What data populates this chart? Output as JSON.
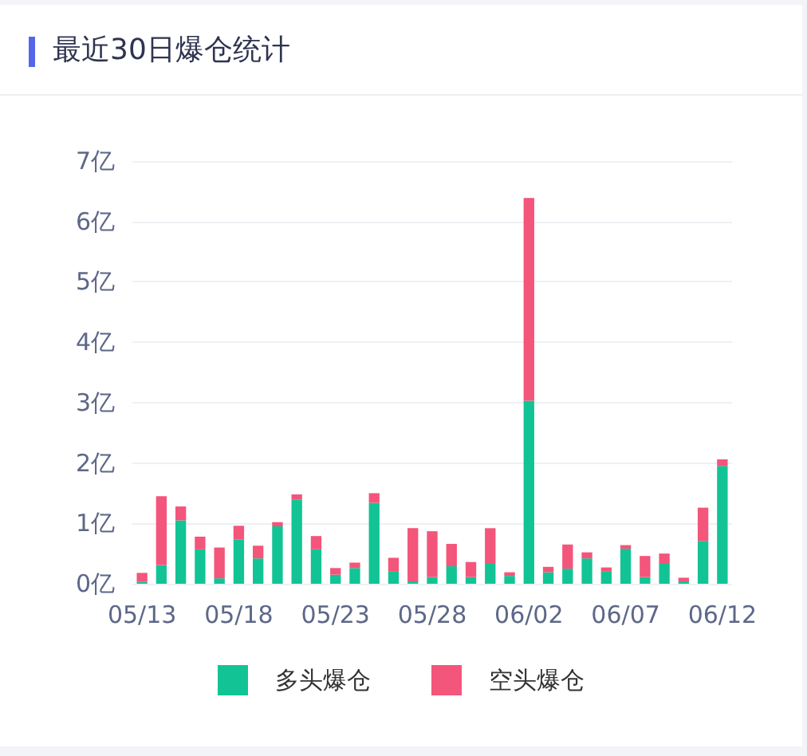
{
  "chart_data": {
    "type": "bar",
    "title": "最近30日爆仓统计",
    "categories": [
      "05/13",
      null,
      null,
      null,
      null,
      "05/18",
      null,
      null,
      null,
      null,
      "05/23",
      null,
      null,
      null,
      null,
      "05/28",
      null,
      null,
      null,
      null,
      "06/02",
      null,
      null,
      null,
      null,
      "06/07",
      null,
      null,
      null,
      null,
      "06/12"
    ],
    "series": [
      {
        "name": "多头爆仓",
        "color": "#12c495",
        "values": [
          0.03,
          0.31,
          1.05,
          0.57,
          0.09,
          0.73,
          0.42,
          0.95,
          1.39,
          0.57,
          0.15,
          0.26,
          1.34,
          0.2,
          0.04,
          0.11,
          0.29,
          0.11,
          0.33,
          0.13,
          3.03,
          0.19,
          0.25,
          0.42,
          0.2,
          0.58,
          0.11,
          0.33,
          0.04,
          0.71,
          1.95
        ]
      },
      {
        "name": "空头爆仓",
        "color": "#f4557a",
        "values": [
          0.15,
          1.14,
          0.23,
          0.21,
          0.51,
          0.23,
          0.21,
          0.07,
          0.09,
          0.22,
          0.11,
          0.09,
          0.16,
          0.23,
          0.88,
          0.76,
          0.37,
          0.25,
          0.59,
          0.06,
          3.36,
          0.09,
          0.4,
          0.1,
          0.07,
          0.06,
          0.35,
          0.17,
          0.06,
          0.55,
          0.11
        ]
      }
    ],
    "stacked": true,
    "ylim": [
      0,
      7
    ],
    "yticks": [
      {
        "value": 0,
        "label": "0亿"
      },
      {
        "value": 1,
        "label": "1亿"
      },
      {
        "value": 2,
        "label": "2亿"
      },
      {
        "value": 3,
        "label": "3亿"
      },
      {
        "value": 4,
        "label": "4亿"
      },
      {
        "value": 5,
        "label": "5亿"
      },
      {
        "value": 6,
        "label": "6亿"
      },
      {
        "value": 7,
        "label": "7亿"
      }
    ],
    "grid": "y",
    "legend": "bottom"
  }
}
